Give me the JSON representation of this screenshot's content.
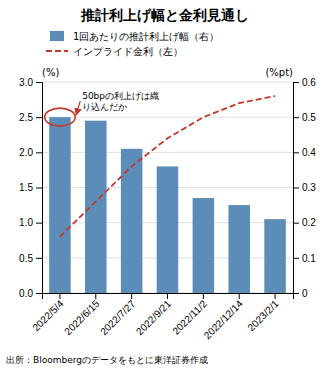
{
  "chart_data": {
    "type": "bar",
    "title": "推計利上げ幅と金利見通し",
    "categories": [
      "2022/5/4",
      "2022/6/15",
      "2022/7/27",
      "2022/9/21",
      "2022/11/2",
      "2022/12/14",
      "2023/2/1"
    ],
    "series": [
      {
        "name": "1回あたりの推計利上げ幅（右）",
        "type": "bar",
        "color": "#5b8db8",
        "values": [
          2.5,
          2.45,
          2.05,
          1.8,
          1.35,
          1.25,
          1.05
        ]
      },
      {
        "name": "インプライド金利（左）",
        "type": "line",
        "axis": "y2",
        "color": "#c0392b",
        "line_style": "dashed",
        "values": [
          0.16,
          0.26,
          0.36,
          0.44,
          0.5,
          0.54,
          0.56
        ]
      }
    ],
    "ylim": [
      0.0,
      3.0
    ],
    "yticks": [
      {
        "value": 0.0,
        "label": "0.0"
      },
      0.5,
      {
        "value": 1.0,
        "label": "1.0"
      },
      1.5,
      {
        "value": 2.0,
        "label": "2.0"
      },
      2.5,
      {
        "value": 3.0,
        "label": "3.0"
      }
    ],
    "y2lim": [
      0,
      0.6
    ],
    "y2ticks": [
      0,
      0.1,
      0.2,
      0.3,
      0.4,
      0.5,
      0.6
    ],
    "ylabel": "(%)",
    "y2label": "(%pt)",
    "grid": true,
    "legend": "upper left",
    "annotation": "50bpの利上げは織\nり込んだか",
    "source": "出所：Bloombergのデータをもとに東洋証券作成"
  }
}
